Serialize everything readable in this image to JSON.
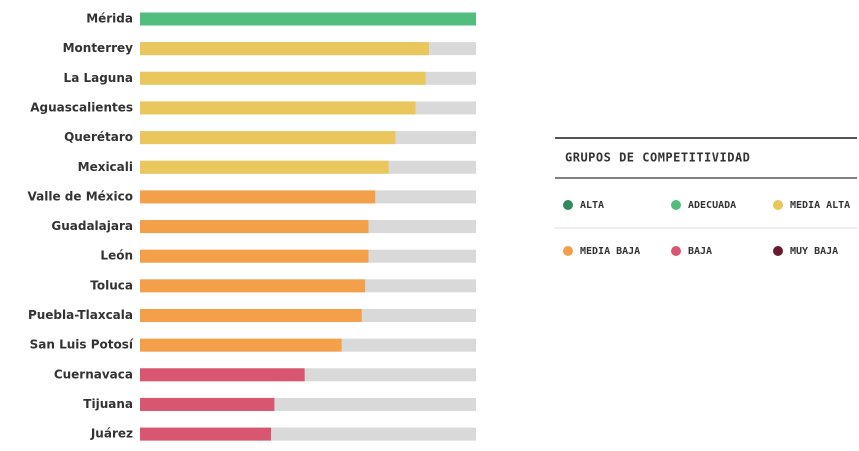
{
  "chart_data": {
    "type": "hbar",
    "categories": [
      "Mérida",
      "Monterrey",
      "La Laguna",
      "Aguascalientes",
      "Querétaro",
      "Mexicali",
      "Valle de México",
      "Guadalajara",
      "León",
      "Toluca",
      "Puebla-Tlaxcala",
      "San Luis Potosí",
      "Cuernavaca",
      "Tijuana",
      "Juárez"
    ],
    "xlim": [
      0,
      100
    ],
    "legend_title": "GRUPOS DE COMPETITIVIDAD",
    "series": [
      {
        "name": "ALTA",
        "color": "#2f8a5c",
        "values": [
          null,
          null,
          null,
          null,
          null,
          null,
          null,
          null,
          null,
          null,
          null,
          null,
          null,
          null,
          null
        ]
      },
      {
        "name": "ADECUADA",
        "color": "#52bd7c",
        "values": [
          100,
          null,
          null,
          null,
          null,
          null,
          null,
          null,
          null,
          null,
          null,
          null,
          null,
          null,
          null
        ]
      },
      {
        "name": "MEDIA ALTA",
        "color": "#e9c75c",
        "values": [
          null,
          86,
          85,
          82,
          76,
          74,
          null,
          null,
          null,
          null,
          null,
          null,
          null,
          null,
          null
        ]
      },
      {
        "name": "MEDIA BAJA",
        "color": "#f4a04b",
        "values": [
          null,
          null,
          null,
          null,
          null,
          null,
          70,
          68,
          68,
          67,
          66,
          60,
          null,
          null,
          null
        ]
      },
      {
        "name": "BAJA",
        "color": "#d85670",
        "values": [
          null,
          null,
          null,
          null,
          null,
          null,
          null,
          null,
          null,
          null,
          null,
          null,
          49,
          40,
          39
        ]
      },
      {
        "name": "MUY BAJA",
        "color": "#6a1a2f",
        "values": [
          null,
          null,
          null,
          null,
          null,
          null,
          null,
          null,
          null,
          null,
          null,
          null,
          null,
          null,
          null
        ]
      }
    ]
  }
}
